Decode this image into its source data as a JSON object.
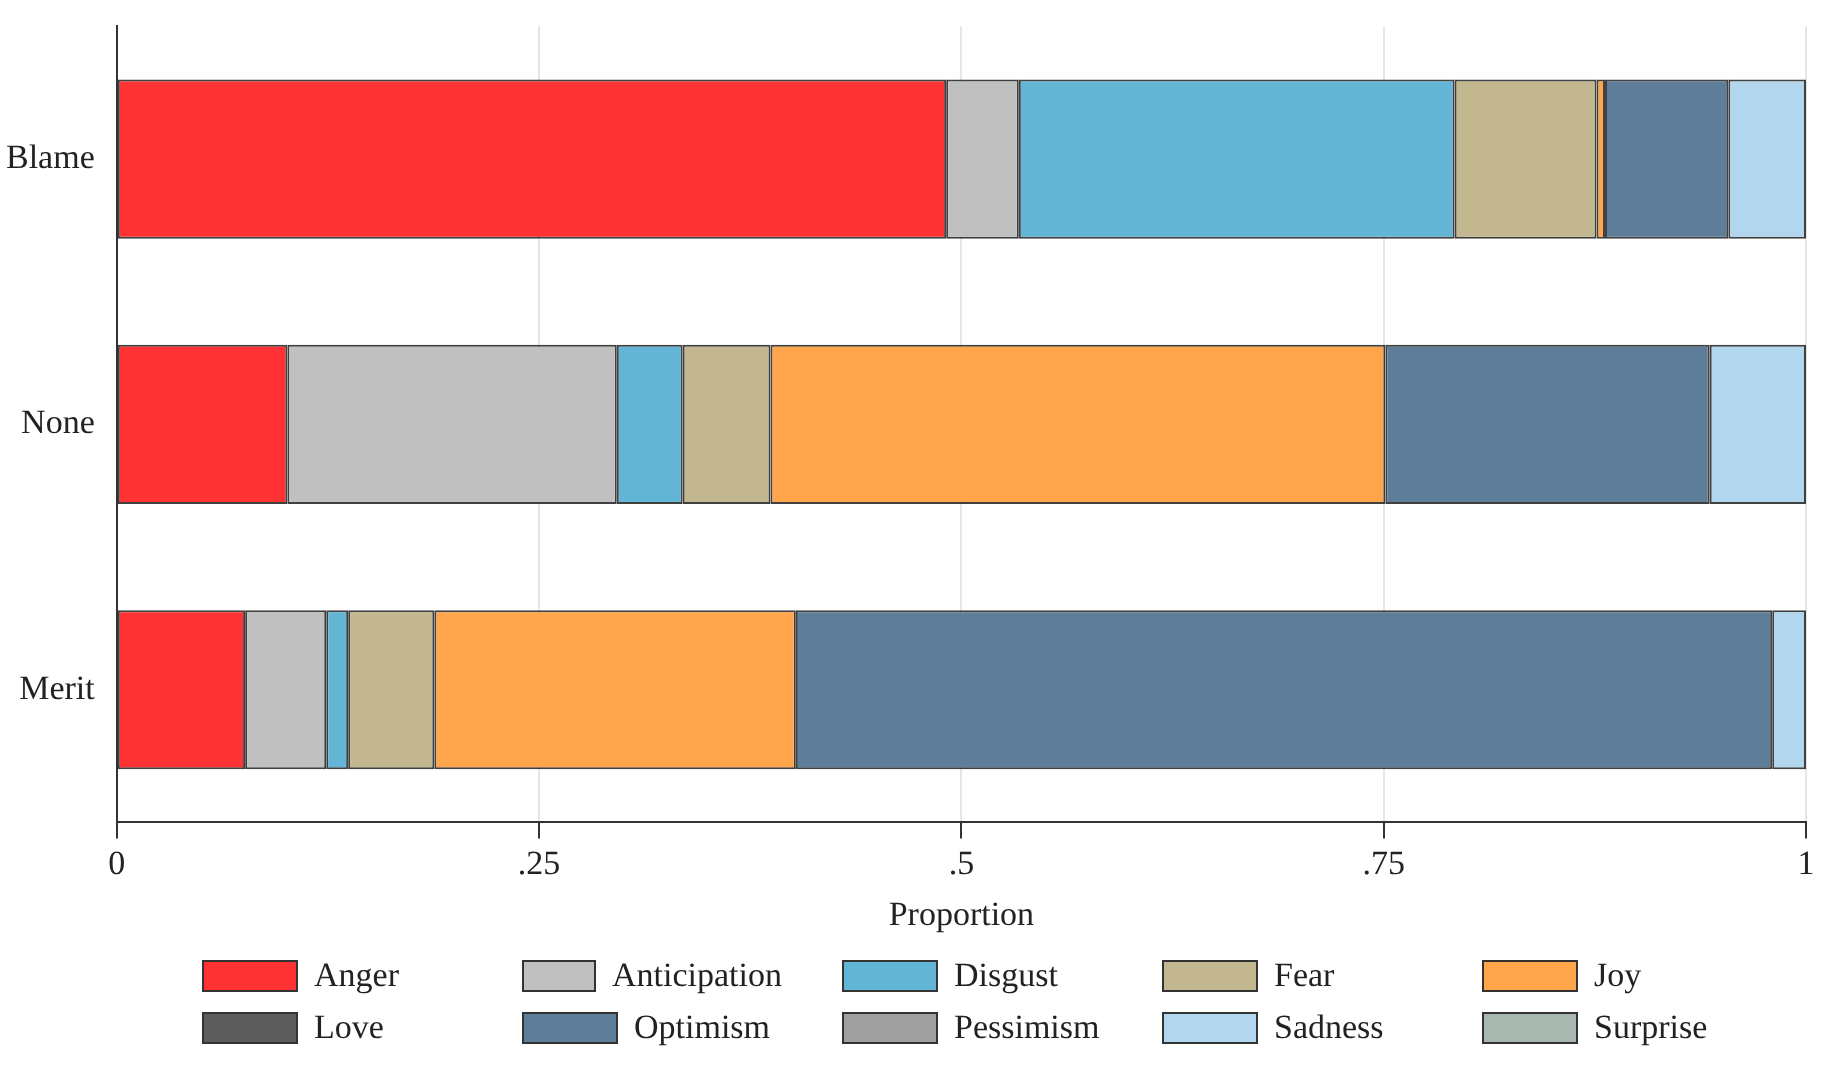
{
  "chart_data": {
    "type": "bar",
    "orientation": "horizontal",
    "stacked": true,
    "xlabel": "Proportion",
    "categories": [
      "Blame",
      "None",
      "Merit"
    ],
    "series": [
      {
        "name": "Anger",
        "color": "#ff3333",
        "values": [
          0.491,
          0.101,
          0.076
        ]
      },
      {
        "name": "Anticipation",
        "color": "#c0c0c0",
        "values": [
          0.043,
          0.195,
          0.048
        ]
      },
      {
        "name": "Disgust",
        "color": "#63b5d6",
        "values": [
          0.258,
          0.039,
          0.013
        ]
      },
      {
        "name": "Fear",
        "color": "#c2b78f",
        "values": [
          0.084,
          0.052,
          0.051
        ]
      },
      {
        "name": "Joy",
        "color": "#ffa64d",
        "values": [
          0.005,
          0.364,
          0.214
        ]
      },
      {
        "name": "Love",
        "color": "#5c5c5c",
        "values": [
          0,
          0,
          0
        ]
      },
      {
        "name": "Optimism",
        "color": "#5e7d99",
        "values": [
          0.073,
          0.192,
          0.578
        ]
      },
      {
        "name": "Pessimism",
        "color": "#a0a0a0",
        "values": [
          0,
          0,
          0
        ]
      },
      {
        "name": "Sadness",
        "color": "#b3d6ef",
        "values": [
          0.046,
          0.057,
          0.02
        ]
      },
      {
        "name": "Surprise",
        "color": "#a8b8b0",
        "values": [
          0,
          0,
          0
        ]
      }
    ],
    "xlim": [
      0,
      1
    ],
    "xticks": [
      0,
      {
        "value": 0.25,
        "label": ".25"
      },
      {
        "value": 0.5,
        "label": ".5"
      },
      {
        "value": 0.75,
        "label": ".75"
      },
      1
    ],
    "grid": "x",
    "legend": "bottom"
  }
}
